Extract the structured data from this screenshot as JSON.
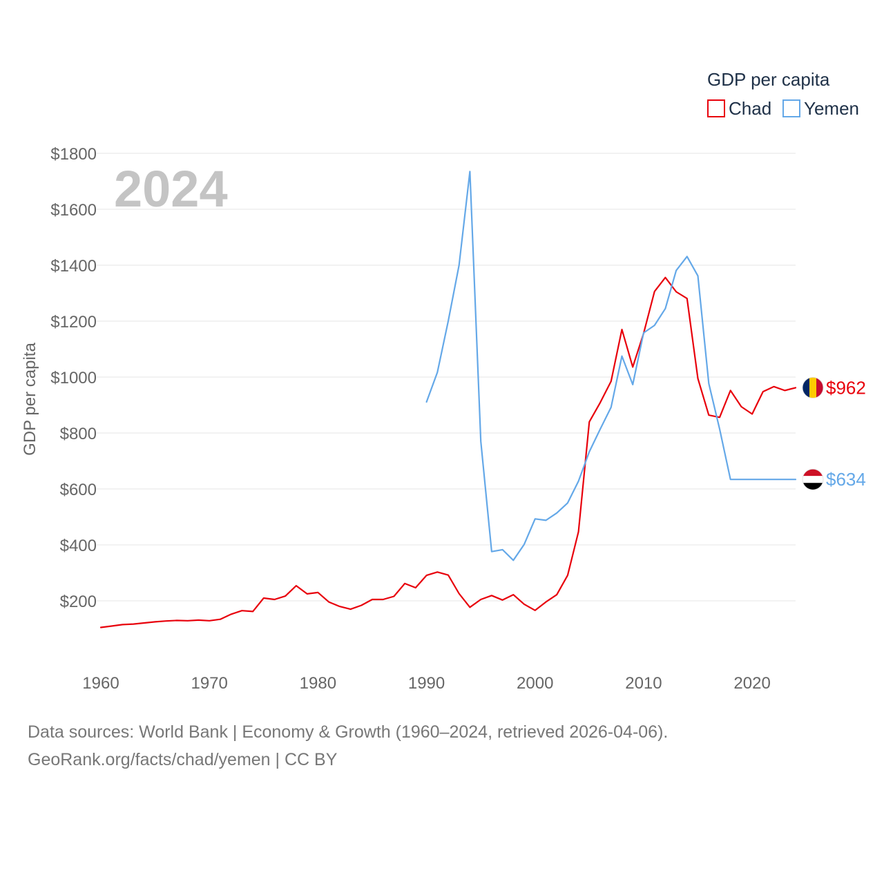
{
  "chart_data": {
    "type": "line",
    "year_label": "2024",
    "ylabel": "GDP per capita",
    "legend_title": "GDP per capita",
    "ylim": [
      0,
      1800
    ],
    "xlim": [
      1960,
      2024
    ],
    "yticks": [
      200,
      400,
      600,
      800,
      1000,
      1200,
      1400,
      1600,
      1800
    ],
    "ytick_labels": [
      "$200",
      "$400",
      "$600",
      "$800",
      "$1000",
      "$1200",
      "$1400",
      "$1600",
      "$1800"
    ],
    "xticks": [
      1960,
      1970,
      1980,
      1990,
      2000,
      2010,
      2020
    ],
    "xtick_labels": [
      "1960",
      "1970",
      "1980",
      "1990",
      "2000",
      "2010",
      "2020"
    ],
    "series": [
      {
        "name": "Chad",
        "color": "#e8000b",
        "end_label": "$962",
        "flag": "chad-flag",
        "x": [
          1960,
          1961,
          1962,
          1963,
          1964,
          1965,
          1966,
          1967,
          1968,
          1969,
          1970,
          1971,
          1972,
          1973,
          1974,
          1975,
          1976,
          1977,
          1978,
          1979,
          1980,
          1981,
          1982,
          1983,
          1984,
          1985,
          1986,
          1987,
          1988,
          1989,
          1990,
          1991,
          1992,
          1993,
          1994,
          1995,
          1996,
          1997,
          1998,
          1999,
          2000,
          2001,
          2002,
          2003,
          2004,
          2005,
          2006,
          2007,
          2008,
          2009,
          2010,
          2011,
          2012,
          2013,
          2014,
          2015,
          2016,
          2017,
          2018,
          2019,
          2020,
          2021,
          2022,
          2023,
          2024
        ],
        "values": [
          105,
          110,
          115,
          117,
          121,
          125,
          128,
          130,
          129,
          131,
          129,
          134,
          152,
          165,
          162,
          210,
          205,
          217,
          254,
          225,
          230,
          196,
          180,
          170,
          184,
          205,
          205,
          216,
          262,
          247,
          291,
          303,
          292,
          226,
          177,
          205,
          219,
          203,
          222,
          188,
          166,
          196,
          222,
          291,
          447,
          840,
          909,
          985,
          1170,
          1036,
          1156,
          1306,
          1356,
          1305,
          1281,
          995,
          864,
          856,
          952,
          894,
          868,
          948,
          966,
          952,
          962
        ]
      },
      {
        "name": "Yemen",
        "color": "#64a8e8",
        "end_label": "$634",
        "flag": "yemen-flag",
        "x": [
          1990,
          1991,
          1992,
          1993,
          1994,
          1995,
          1996,
          1997,
          1998,
          1999,
          2000,
          2001,
          2002,
          2003,
          2004,
          2005,
          2006,
          2007,
          2008,
          2009,
          2010,
          2011,
          2012,
          2013,
          2014,
          2015,
          2016,
          2017,
          2018,
          2019,
          2020,
          2021,
          2022,
          2023,
          2024
        ],
        "values": [
          911,
          1017,
          1200,
          1400,
          1735,
          770,
          376,
          383,
          345,
          402,
          493,
          488,
          514,
          550,
          628,
          733,
          814,
          892,
          1075,
          973,
          1158,
          1185,
          1245,
          1381,
          1431,
          1362,
          977,
          814,
          634,
          634,
          634,
          634,
          634,
          634,
          634
        ]
      }
    ]
  },
  "footer": {
    "line1": "Data sources: World Bank | Economy & Growth (1960–2024, retrieved 2026-04-06).",
    "line2": "GeoRank.org/facts/chad/yemen | CC BY"
  }
}
